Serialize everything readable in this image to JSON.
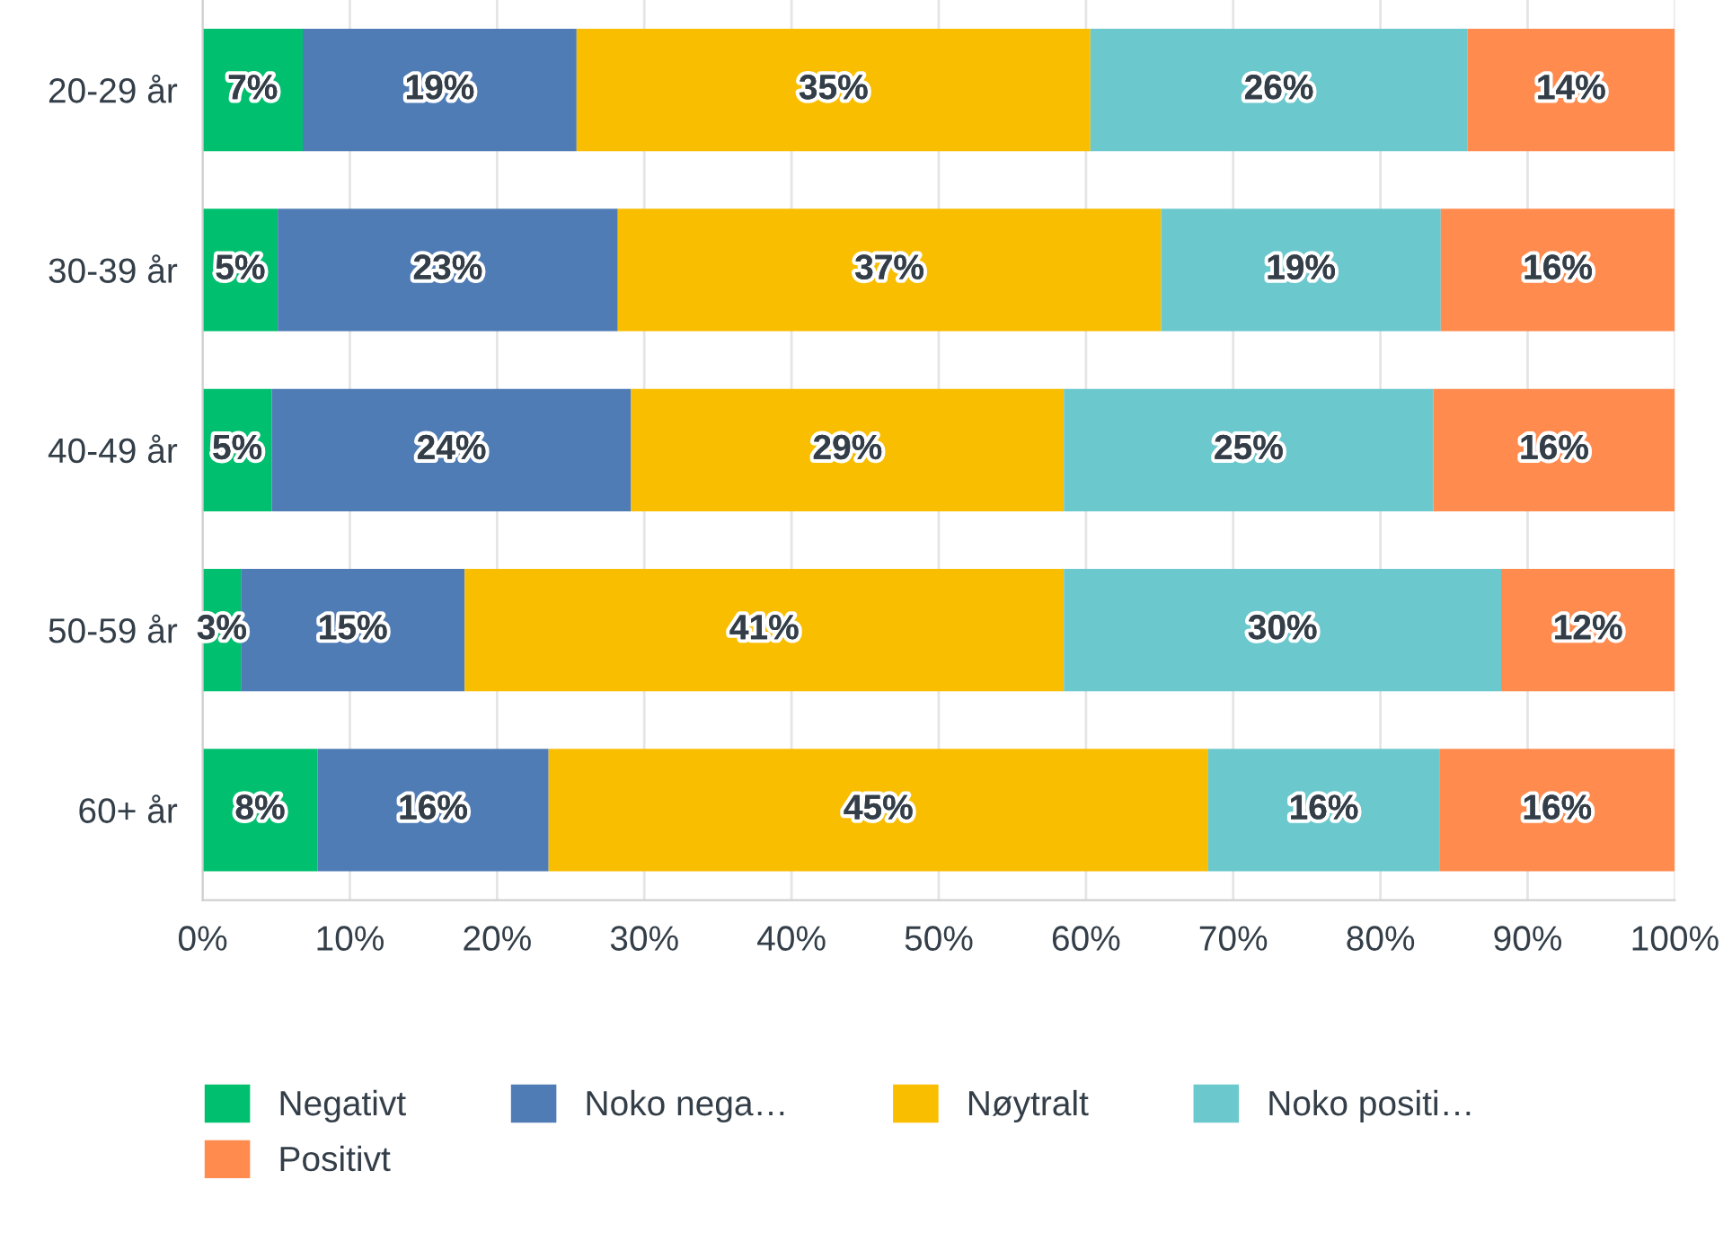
{
  "chart_data": {
    "type": "bar",
    "orientation": "horizontal",
    "stacked": true,
    "categories": [
      "20-29 år",
      "30-39 år",
      "40-49 år",
      "50-59 år",
      "60+ år"
    ],
    "series": [
      {
        "name": "Negativt",
        "color": "#00bf6f",
        "values": [
          6.8,
          5.1,
          4.7,
          2.6,
          7.8
        ],
        "value_labels": [
          "7%",
          "5%",
          "5%",
          "3%",
          "8%"
        ]
      },
      {
        "name": "Noko nega…",
        "color": "#507cb6",
        "values": [
          18.6,
          23.1,
          24.4,
          15.2,
          15.7
        ],
        "value_labels": [
          "19%",
          "23%",
          "24%",
          "15%",
          "16%"
        ]
      },
      {
        "name": "Nøytralt",
        "color": "#f9be00",
        "values": [
          34.9,
          36.9,
          29.4,
          40.7,
          44.8
        ],
        "value_labels": [
          "35%",
          "37%",
          "29%",
          "41%",
          "45%"
        ]
      },
      {
        "name": "Noko positi…",
        "color": "#6bc8cd",
        "values": [
          25.6,
          19.0,
          25.1,
          29.7,
          15.7
        ],
        "value_labels": [
          "26%",
          "19%",
          "25%",
          "30%",
          "16%"
        ]
      },
      {
        "name": "Positivt",
        "color": "#ff8b4f",
        "values": [
          14.1,
          15.9,
          16.4,
          11.8,
          16.0
        ],
        "value_labels": [
          "14%",
          "16%",
          "16%",
          "12%",
          "16%"
        ]
      }
    ],
    "xlim": [
      0,
      100
    ],
    "xticks": [
      {
        "value": 0,
        "label": "0%"
      },
      {
        "value": 10,
        "label": "10%"
      },
      {
        "value": 20,
        "label": "20%"
      },
      {
        "value": 30,
        "label": "30%"
      },
      {
        "value": 40,
        "label": "40%"
      },
      {
        "value": 50,
        "label": "50%"
      },
      {
        "value": 60,
        "label": "60%"
      },
      {
        "value": 70,
        "label": "70%"
      },
      {
        "value": 80,
        "label": "80%"
      },
      {
        "value": 90,
        "label": "90%"
      },
      {
        "value": 100,
        "label": "100%"
      }
    ],
    "grid": "x",
    "legend": "bottom"
  }
}
